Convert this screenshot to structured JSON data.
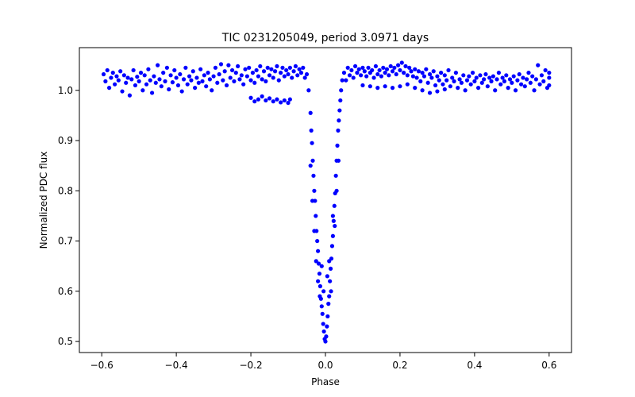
{
  "chart_data": {
    "type": "scatter",
    "title": "TIC 0231205049, period 3.0971 days",
    "xlabel": "Phase",
    "ylabel": "Normalized PDC flux",
    "xlim": [
      -0.66,
      0.66
    ],
    "ylim": [
      0.478,
      1.085
    ],
    "xticks": [
      -0.6,
      -0.4,
      -0.2,
      0.0,
      0.2,
      0.4,
      0.6
    ],
    "xtick_labels": [
      "−0.6",
      "−0.4",
      "−0.2",
      "0.0",
      "0.2",
      "0.4",
      "0.6"
    ],
    "yticks": [
      0.5,
      0.6,
      0.7,
      0.8,
      0.9,
      1.0
    ],
    "ytick_labels": [
      "0.5",
      "0.6",
      "0.7",
      "0.8",
      "0.9",
      "1.0"
    ],
    "marker_color": "#0000ff",
    "grid": false,
    "series": [
      {
        "name": "PDC flux",
        "description": "Phase-folded light curve; out-of-transit flux ~1.00-1.05 with a secondary band near 0.98-1.00, primary transit dip centred near phase 0.0 reaching ~0.50",
        "points": [
          [
            -0.595,
            1.032
          ],
          [
            -0.59,
            1.018
          ],
          [
            -0.585,
            1.04
          ],
          [
            -0.58,
            1.005
          ],
          [
            -0.575,
            1.025
          ],
          [
            -0.57,
            1.035
          ],
          [
            -0.565,
            1.012
          ],
          [
            -0.56,
            1.028
          ],
          [
            -0.555,
            1.02
          ],
          [
            -0.55,
            1.038
          ],
          [
            -0.545,
            0.998
          ],
          [
            -0.54,
            1.03
          ],
          [
            -0.535,
            1.015
          ],
          [
            -0.53,
            1.025
          ],
          [
            -0.525,
            0.99
          ],
          [
            -0.52,
            1.022
          ],
          [
            -0.515,
            1.04
          ],
          [
            -0.51,
            1.01
          ],
          [
            -0.505,
            1.027
          ],
          [
            -0.5,
            1.018
          ],
          [
            -0.495,
            1.035
          ],
          [
            -0.49,
            1.0
          ],
          [
            -0.485,
            1.03
          ],
          [
            -0.48,
            1.012
          ],
          [
            -0.475,
            1.042
          ],
          [
            -0.47,
            1.02
          ],
          [
            -0.465,
            0.995
          ],
          [
            -0.46,
            1.028
          ],
          [
            -0.455,
            1.015
          ],
          [
            -0.45,
            1.05
          ],
          [
            -0.445,
            1.022
          ],
          [
            -0.44,
            1.008
          ],
          [
            -0.435,
            1.035
          ],
          [
            -0.43,
            1.018
          ],
          [
            -0.425,
            1.045
          ],
          [
            -0.42,
            1.002
          ],
          [
            -0.415,
            1.03
          ],
          [
            -0.41,
            1.016
          ],
          [
            -0.405,
            1.04
          ],
          [
            -0.4,
            1.025
          ],
          [
            -0.395,
            1.01
          ],
          [
            -0.39,
            1.032
          ],
          [
            -0.385,
            0.998
          ],
          [
            -0.38,
            1.022
          ],
          [
            -0.375,
            1.045
          ],
          [
            -0.37,
            1.012
          ],
          [
            -0.365,
            1.028
          ],
          [
            -0.36,
            1.02
          ],
          [
            -0.355,
            1.038
          ],
          [
            -0.35,
            1.005
          ],
          [
            -0.345,
            1.025
          ],
          [
            -0.34,
            1.015
          ],
          [
            -0.335,
            1.042
          ],
          [
            -0.33,
            1.018
          ],
          [
            -0.325,
            1.03
          ],
          [
            -0.32,
            1.008
          ],
          [
            -0.315,
            1.035
          ],
          [
            -0.31,
            1.022
          ],
          [
            -0.305,
            1.0
          ],
          [
            -0.3,
            1.028
          ],
          [
            -0.295,
            1.045
          ],
          [
            -0.29,
            1.015
          ],
          [
            -0.285,
            1.032
          ],
          [
            -0.28,
            1.052
          ],
          [
            -0.275,
            1.02
          ],
          [
            -0.27,
            1.038
          ],
          [
            -0.265,
            1.01
          ],
          [
            -0.26,
            1.05
          ],
          [
            -0.255,
            1.025
          ],
          [
            -0.25,
            1.04
          ],
          [
            -0.245,
            1.018
          ],
          [
            -0.24,
            1.035
          ],
          [
            -0.235,
            1.048
          ],
          [
            -0.23,
            1.022
          ],
          [
            -0.225,
            1.03
          ],
          [
            -0.22,
            1.012
          ],
          [
            -0.215,
            1.042
          ],
          [
            -0.21,
            1.028
          ],
          [
            -0.205,
            1.045
          ],
          [
            -0.2,
            1.02
          ],
          [
            -0.195,
            1.035
          ],
          [
            -0.19,
            1.015
          ],
          [
            -0.185,
            1.04
          ],
          [
            -0.18,
            1.028
          ],
          [
            -0.175,
            1.048
          ],
          [
            -0.17,
            1.022
          ],
          [
            -0.165,
            1.038
          ],
          [
            -0.16,
            1.018
          ],
          [
            -0.155,
            1.045
          ],
          [
            -0.15,
            1.03
          ],
          [
            -0.145,
            1.042
          ],
          [
            -0.14,
            1.025
          ],
          [
            -0.135,
            1.038
          ],
          [
            -0.13,
            1.048
          ],
          [
            -0.125,
            1.02
          ],
          [
            -0.12,
            1.035
          ],
          [
            -0.115,
            1.045
          ],
          [
            -0.11,
            1.028
          ],
          [
            -0.105,
            1.04
          ],
          [
            -0.1,
            1.032
          ],
          [
            -0.095,
            1.045
          ],
          [
            -0.09,
            1.025
          ],
          [
            -0.085,
            1.038
          ],
          [
            -0.08,
            1.048
          ],
          [
            -0.075,
            1.03
          ],
          [
            -0.07,
            1.042
          ],
          [
            -0.065,
            1.035
          ],
          [
            -0.06,
            1.045
          ],
          [
            -0.055,
            1.025
          ],
          [
            -0.05,
            1.032
          ],
          [
            -0.2,
            0.985
          ],
          [
            -0.19,
            0.978
          ],
          [
            -0.18,
            0.982
          ],
          [
            -0.17,
            0.988
          ],
          [
            -0.16,
            0.98
          ],
          [
            -0.15,
            0.984
          ],
          [
            -0.14,
            0.978
          ],
          [
            -0.13,
            0.982
          ],
          [
            -0.12,
            0.976
          ],
          [
            -0.11,
            0.98
          ],
          [
            -0.1,
            0.975
          ],
          [
            -0.095,
            0.982
          ],
          [
            -0.045,
            1.0
          ],
          [
            -0.04,
            0.955
          ],
          [
            -0.038,
            0.92
          ],
          [
            -0.036,
            0.895
          ],
          [
            -0.034,
            0.86
          ],
          [
            -0.032,
            0.83
          ],
          [
            -0.03,
            0.8
          ],
          [
            -0.028,
            0.78
          ],
          [
            -0.026,
            0.75
          ],
          [
            -0.024,
            0.72
          ],
          [
            -0.022,
            0.7
          ],
          [
            -0.02,
            0.68
          ],
          [
            -0.018,
            0.655
          ],
          [
            -0.016,
            0.635
          ],
          [
            -0.014,
            0.61
          ],
          [
            -0.012,
            0.585
          ],
          [
            -0.01,
            0.57
          ],
          [
            -0.008,
            0.555
          ],
          [
            -0.006,
            0.535
          ],
          [
            -0.004,
            0.52
          ],
          [
            -0.002,
            0.505
          ],
          [
            0.0,
            0.5
          ],
          [
            0.002,
            0.51
          ],
          [
            0.004,
            0.53
          ],
          [
            0.006,
            0.55
          ],
          [
            0.008,
            0.575
          ],
          [
            0.01,
            0.59
          ],
          [
            0.012,
            0.62
          ],
          [
            0.014,
            0.645
          ],
          [
            0.016,
            0.665
          ],
          [
            0.018,
            0.69
          ],
          [
            0.02,
            0.71
          ],
          [
            0.022,
            0.74
          ],
          [
            0.024,
            0.77
          ],
          [
            0.026,
            0.795
          ],
          [
            0.028,
            0.83
          ],
          [
            0.03,
            0.86
          ],
          [
            0.032,
            0.89
          ],
          [
            0.034,
            0.92
          ],
          [
            0.036,
            0.94
          ],
          [
            0.038,
            0.96
          ],
          [
            0.04,
            0.98
          ],
          [
            0.042,
            1.0
          ],
          [
            0.045,
            1.02
          ],
          [
            -0.03,
            0.72
          ],
          [
            -0.025,
            0.66
          ],
          [
            -0.02,
            0.62
          ],
          [
            -0.015,
            0.59
          ],
          [
            -0.01,
            0.65
          ],
          [
            -0.005,
            0.6
          ],
          [
            0.005,
            0.63
          ],
          [
            0.01,
            0.66
          ],
          [
            0.015,
            0.6
          ],
          [
            0.02,
            0.75
          ],
          [
            0.025,
            0.73
          ],
          [
            -0.035,
            0.78
          ],
          [
            0.03,
            0.8
          ],
          [
            -0.04,
            0.85
          ],
          [
            0.035,
            0.86
          ],
          [
            0.05,
            1.035
          ],
          [
            0.055,
            1.02
          ],
          [
            0.06,
            1.045
          ],
          [
            0.065,
            1.03
          ],
          [
            0.07,
            1.04
          ],
          [
            0.075,
            1.025
          ],
          [
            0.08,
            1.048
          ],
          [
            0.085,
            1.035
          ],
          [
            0.09,
            1.042
          ],
          [
            0.095,
            1.03
          ],
          [
            0.1,
            1.045
          ],
          [
            0.105,
            1.038
          ],
          [
            0.11,
            1.028
          ],
          [
            0.115,
            1.045
          ],
          [
            0.12,
            1.035
          ],
          [
            0.125,
            1.04
          ],
          [
            0.13,
            1.025
          ],
          [
            0.135,
            1.048
          ],
          [
            0.14,
            1.032
          ],
          [
            0.145,
            1.04
          ],
          [
            0.15,
            1.028
          ],
          [
            0.155,
            1.045
          ],
          [
            0.16,
            1.035
          ],
          [
            0.165,
            1.042
          ],
          [
            0.17,
            1.03
          ],
          [
            0.175,
            1.048
          ],
          [
            0.18,
            1.038
          ],
          [
            0.185,
            1.045
          ],
          [
            0.19,
            1.032
          ],
          [
            0.195,
            1.05
          ],
          [
            0.2,
            1.04
          ],
          [
            0.205,
            1.055
          ],
          [
            0.21,
            1.035
          ],
          [
            0.215,
            1.048
          ],
          [
            0.22,
            1.03
          ],
          [
            0.225,
            1.045
          ],
          [
            0.23,
            1.038
          ],
          [
            0.235,
            1.028
          ],
          [
            0.24,
            1.042
          ],
          [
            0.245,
            1.025
          ],
          [
            0.25,
            1.038
          ],
          [
            0.255,
            1.018
          ],
          [
            0.26,
            1.035
          ],
          [
            0.265,
            1.028
          ],
          [
            0.27,
            1.042
          ],
          [
            0.275,
            1.015
          ],
          [
            0.28,
            1.032
          ],
          [
            0.285,
            1.025
          ],
          [
            0.29,
            1.038
          ],
          [
            0.295,
            1.01
          ],
          [
            0.3,
            1.028
          ],
          [
            0.305,
            1.02
          ],
          [
            0.31,
            1.035
          ],
          [
            0.315,
            1.012
          ],
          [
            0.32,
            1.03
          ],
          [
            0.325,
            1.02
          ],
          [
            0.33,
            1.04
          ],
          [
            0.335,
            1.008
          ],
          [
            0.34,
            1.025
          ],
          [
            0.345,
            1.018
          ],
          [
            0.35,
            1.035
          ],
          [
            0.355,
            1.005
          ],
          [
            0.36,
            1.022
          ],
          [
            0.365,
            1.015
          ],
          [
            0.37,
            1.03
          ],
          [
            0.375,
            1.0
          ],
          [
            0.38,
            1.02
          ],
          [
            0.385,
            1.028
          ],
          [
            0.39,
            1.012
          ],
          [
            0.395,
            1.035
          ],
          [
            0.4,
            1.018
          ],
          [
            0.405,
            1.025
          ],
          [
            0.41,
            1.005
          ],
          [
            0.415,
            1.03
          ],
          [
            0.42,
            1.015
          ],
          [
            0.425,
            1.022
          ],
          [
            0.43,
            1.032
          ],
          [
            0.435,
            1.008
          ],
          [
            0.44,
            1.025
          ],
          [
            0.445,
            1.018
          ],
          [
            0.45,
            1.028
          ],
          [
            0.455,
            1.0
          ],
          [
            0.46,
            1.022
          ],
          [
            0.465,
            1.035
          ],
          [
            0.47,
            1.012
          ],
          [
            0.475,
            1.025
          ],
          [
            0.48,
            1.018
          ],
          [
            0.485,
            1.03
          ],
          [
            0.49,
            1.005
          ],
          [
            0.495,
            1.022
          ],
          [
            0.5,
            1.015
          ],
          [
            0.505,
            1.028
          ],
          [
            0.51,
            1.0
          ],
          [
            0.515,
            1.02
          ],
          [
            0.52,
            1.032
          ],
          [
            0.525,
            1.012
          ],
          [
            0.53,
            1.025
          ],
          [
            0.535,
            1.008
          ],
          [
            0.54,
            1.022
          ],
          [
            0.545,
            1.035
          ],
          [
            0.55,
            1.015
          ],
          [
            0.555,
            1.028
          ],
          [
            0.56,
            1.0
          ],
          [
            0.565,
            1.022
          ],
          [
            0.57,
            1.05
          ],
          [
            0.575,
            1.012
          ],
          [
            0.58,
            1.03
          ],
          [
            0.585,
            1.018
          ],
          [
            0.59,
            1.04
          ],
          [
            0.595,
            1.005
          ],
          [
            0.6,
            1.025
          ],
          [
            0.6,
            1.01
          ],
          [
            0.6,
            1.035
          ],
          [
            0.1,
            1.01
          ],
          [
            0.12,
            1.008
          ],
          [
            0.14,
            1.005
          ],
          [
            0.16,
            1.008
          ],
          [
            0.18,
            1.005
          ],
          [
            0.2,
            1.008
          ],
          [
            0.22,
            1.012
          ],
          [
            0.24,
            1.005
          ],
          [
            0.26,
            1.0
          ],
          [
            0.28,
            0.995
          ],
          [
            0.3,
            0.998
          ],
          [
            0.32,
            1.002
          ]
        ]
      }
    ]
  }
}
